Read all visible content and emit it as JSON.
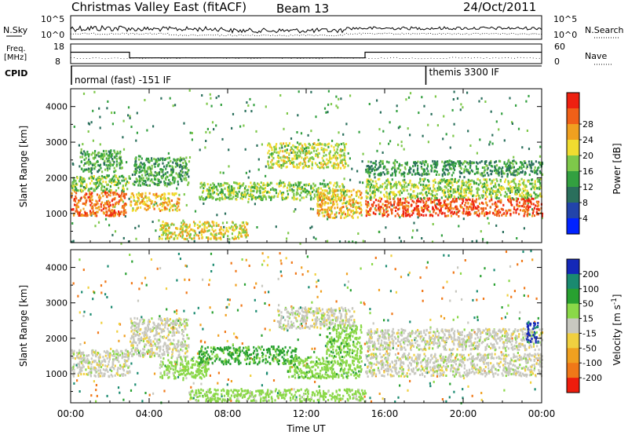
{
  "header": {
    "title": "Christmas Valley East (fitACF)",
    "beam": "Beam 13",
    "date": "24/Oct/2011"
  },
  "top_panels": {
    "nsky": {
      "left_label": "N.Sky",
      "right_label": "N.Search",
      "left_ticks": [
        "10^5",
        "10^0"
      ],
      "right_ticks": [
        "10^5",
        "10^0"
      ]
    },
    "freq": {
      "left_label_1": "Freq.",
      "left_label_2": "[MHz]",
      "right_label": "Nave",
      "left_ticks": [
        "18",
        "8"
      ],
      "right_ticks": [
        "60",
        "0"
      ],
      "freq_steps": [
        {
          "from_h": 0,
          "to_h": 3.0,
          "mhz": 15.5
        },
        {
          "from_h": 3.0,
          "to_h": 15.0,
          "mhz": 11.5
        },
        {
          "from_h": 15.0,
          "to_h": 24.0,
          "mhz": 15.5
        }
      ]
    },
    "cpid": {
      "label": "CPID",
      "mode_1": "normal (fast) -151 IF",
      "mode_2": "themis 3300 IF",
      "mode_2_start_h": 18.1
    }
  },
  "chart_data": [
    {
      "type": "heatmap",
      "quantity": "Power",
      "colorbar_label": "Power [dB]",
      "colorbar_ticks": [
        "4",
        "8",
        "12",
        "16",
        "20",
        "24",
        "28"
      ],
      "colorbar_colors": [
        "#0022ff",
        "#2244aa",
        "#2a6f5c",
        "#33a040",
        "#7ec84a",
        "#f0dc30",
        "#f0a020",
        "#f06018",
        "#ee2010"
      ],
      "ylabel": "Slant Range [km]",
      "ylim": [
        180,
        4500
      ],
      "yticks": [
        "1000",
        "2000",
        "3000",
        "4000"
      ],
      "xlim_h": [
        0,
        24
      ],
      "bands": [
        {
          "t0": 0.0,
          "t1": 2.8,
          "r0": 950,
          "r1": 1650,
          "p": 25
        },
        {
          "t0": 0.0,
          "t1": 3.0,
          "r0": 1650,
          "r1": 2100,
          "p": 13
        },
        {
          "t0": 0.4,
          "t1": 2.6,
          "r0": 2200,
          "r1": 2800,
          "p": 11
        },
        {
          "t0": 3.0,
          "t1": 5.5,
          "r0": 1100,
          "r1": 1600,
          "p": 20
        },
        {
          "t0": 3.2,
          "t1": 6.0,
          "r0": 1800,
          "r1": 2600,
          "p": 10
        },
        {
          "t0": 4.5,
          "t1": 9.0,
          "r0": 300,
          "r1": 800,
          "p": 18
        },
        {
          "t0": 6.5,
          "t1": 14.0,
          "r0": 1400,
          "r1": 1900,
          "p": 14
        },
        {
          "t0": 10.0,
          "t1": 14.0,
          "r0": 2300,
          "r1": 3000,
          "p": 16
        },
        {
          "t0": 12.5,
          "t1": 14.8,
          "r0": 900,
          "r1": 1700,
          "p": 20
        },
        {
          "t0": 15.0,
          "t1": 24.0,
          "r0": 950,
          "r1": 1450,
          "p": 27
        },
        {
          "t0": 15.0,
          "t1": 24.0,
          "r0": 1450,
          "r1": 2000,
          "p": 15
        },
        {
          "t0": 15.0,
          "t1": 24.0,
          "r0": 2100,
          "r1": 2500,
          "p": 9
        }
      ]
    },
    {
      "type": "heatmap",
      "quantity": "Velocity",
      "colorbar_label": "Velocity [m s^-1]",
      "colorbar_ticks": [
        "-200",
        "-100",
        "-50",
        "-15",
        "15",
        "50",
        "100",
        "200"
      ],
      "colorbar_colors": [
        "#ee1c0c",
        "#f07818",
        "#f0a020",
        "#f0d040",
        "#c8c8c0",
        "#8ad848",
        "#28a030",
        "#1a8a70",
        "#1428b8"
      ],
      "ylabel": "Slant Range [km]",
      "ylim": [
        180,
        4500
      ],
      "yticks": [
        "1000",
        "2000",
        "3000",
        "4000"
      ],
      "xlim_h": [
        0,
        24
      ],
      "xticks": [
        "00:00",
        "04:00",
        "08:00",
        "12:00",
        "16:00",
        "20:00",
        "00:00"
      ],
      "xlabel": "Time UT",
      "bands": [
        {
          "t0": 0.0,
          "t1": 3.0,
          "r0": 950,
          "r1": 1700,
          "v": 0
        },
        {
          "t0": 3.0,
          "t1": 6.0,
          "r0": 1500,
          "r1": 2600,
          "v": 0
        },
        {
          "t0": 4.5,
          "t1": 7.0,
          "r0": 900,
          "r1": 1500,
          "v": 30
        },
        {
          "t0": 6.5,
          "t1": 11.5,
          "r0": 1300,
          "r1": 1800,
          "v": 60
        },
        {
          "t0": 11.0,
          "t1": 13.0,
          "r0": 900,
          "r1": 1500,
          "v": 35
        },
        {
          "t0": 10.5,
          "t1": 14.5,
          "r0": 2300,
          "r1": 2900,
          "v": 0
        },
        {
          "t0": 13.0,
          "t1": 14.8,
          "r0": 900,
          "r1": 2400,
          "v": 35
        },
        {
          "t0": 15.0,
          "t1": 24.0,
          "r0": 950,
          "r1": 1600,
          "v": 0
        },
        {
          "t0": 15.0,
          "t1": 24.0,
          "r0": 1700,
          "r1": 2300,
          "v": 0
        },
        {
          "t0": 6.0,
          "t1": 15.0,
          "r0": 250,
          "r1": 600,
          "v": 30
        },
        {
          "t0": 23.2,
          "t1": 23.8,
          "r0": 1900,
          "r1": 2500,
          "v": 210
        }
      ]
    }
  ]
}
